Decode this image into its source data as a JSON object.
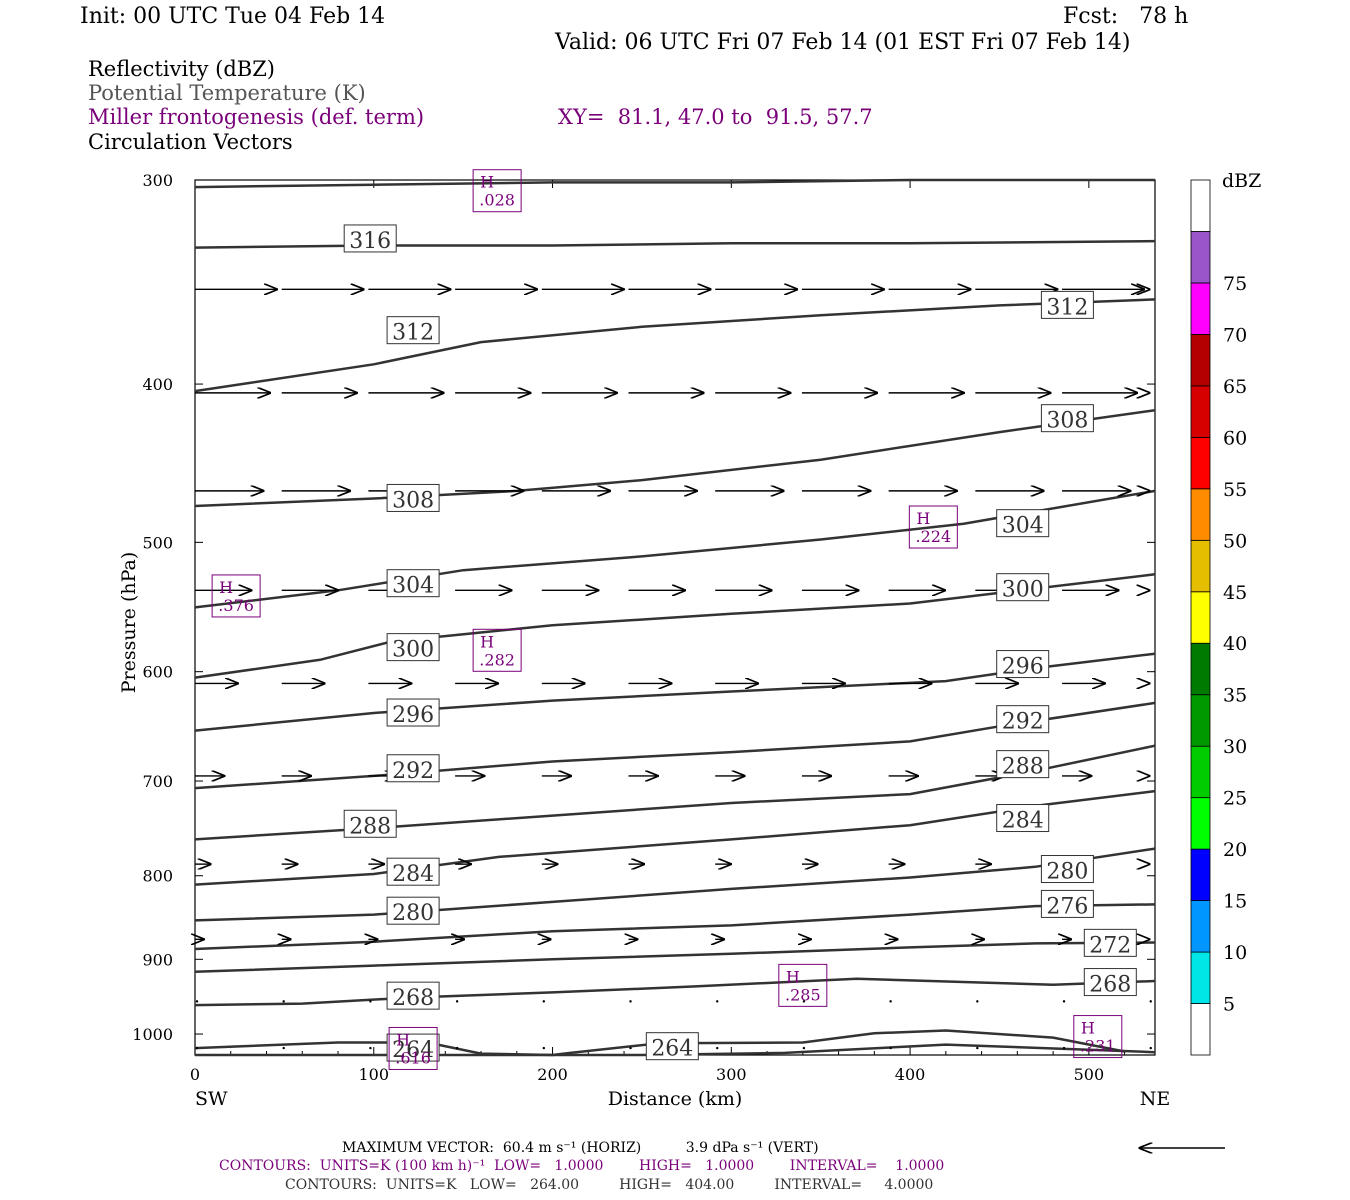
{
  "header": {
    "init": "Init: 00 UTC Tue 04 Feb 14",
    "fcst": "Fcst:   78 h",
    "valid": "Valid: 06 UTC Fri 07 Feb 14 (01 EST Fri 07 Feb 14)"
  },
  "legend": [
    {
      "text": "Reflectivity (dBZ)",
      "color": "#000000"
    },
    {
      "text": "Potential Temperature (K)",
      "color": "#555555"
    },
    {
      "text": "Miller frontogenesis (def. term)",
      "color": "#7a007a"
    },
    {
      "text": "Circulation Vectors",
      "color": "#000000"
    }
  ],
  "xy_label": "XY=  81.1, 47.0 to  91.5, 57.7",
  "colorbar": {
    "unit": "dBZ",
    "levels": [
      "5",
      "10",
      "15",
      "20",
      "25",
      "30",
      "35",
      "40",
      "45",
      "50",
      "55",
      "60",
      "65",
      "70",
      "75"
    ],
    "colors": [
      "#ffffff",
      "#00e5e5",
      "#0096ff",
      "#0000ff",
      "#00ff00",
      "#00cc00",
      "#009900",
      "#007a00",
      "#ffff00",
      "#e6be00",
      "#ff8c00",
      "#ff0000",
      "#d70000",
      "#b40000",
      "#ff00ff",
      "#9955c9",
      "#ffffff"
    ]
  },
  "footer": {
    "line1": "MAXIMUM VECTOR:  60.4 m s⁻¹ (HORIZ)          3.9 dPa s⁻¹ (VERT)",
    "line2": "CONTOURS:  UNITS=K (100 km h)⁻¹  LOW=   1.0000        HIGH=   1.0000        INTERVAL=    1.0000",
    "line3": "CONTOURS:  UNITS=K   LOW=   264.00         HIGH=   404.00         INTERVAL=     4.0000"
  },
  "chart_data": {
    "type": "line",
    "title": "",
    "xlabel": "Distance (km)",
    "ylabel": "Pressure (hPa)",
    "xlim": [
      0,
      537
    ],
    "ylim": [
      1030,
      300
    ],
    "y_scale": "log",
    "x_ticks": [
      "0",
      "100",
      "200",
      "300",
      "400",
      "500"
    ],
    "y_ticks": [
      "300",
      "400",
      "500",
      "600",
      "700",
      "800",
      "900",
      "1000"
    ],
    "x_end_labels": {
      "left": "SW",
      "right": "NE"
    },
    "theta_contours": [
      {
        "name": "316",
        "points": [
          [
            0,
            303
          ],
          [
            100,
            302
          ],
          [
            200,
            301
          ],
          [
            300,
            301
          ],
          [
            400,
            300
          ],
          [
            537,
            300
          ]
        ],
        "labels": [
          [
            98,
            326
          ]
        ]
      },
      {
        "name": "312",
        "points": [
          [
            0,
            330
          ],
          [
            100,
            329
          ],
          [
            200,
            329
          ],
          [
            300,
            328
          ],
          [
            400,
            328
          ],
          [
            537,
            327
          ]
        ],
        "labels": [
          [
            122,
            371
          ],
          [
            488,
            358
          ]
        ]
      },
      {
        "name": "308",
        "points": [
          [
            0,
            404
          ],
          [
            100,
            389
          ],
          [
            160,
            377
          ],
          [
            250,
            369
          ],
          [
            350,
            363
          ],
          [
            450,
            358
          ],
          [
            537,
            355
          ]
        ],
        "labels": [
          [
            488,
            420
          ]
        ]
      },
      {
        "name": "308b",
        "points": [
          [
            0,
            475
          ],
          [
            100,
            470
          ],
          [
            180,
            465
          ],
          [
            250,
            458
          ],
          [
            350,
            445
          ],
          [
            450,
            428
          ],
          [
            537,
            415
          ]
        ],
        "labels": [
          [
            122,
            470
          ]
        ]
      },
      {
        "name": "304",
        "points": [
          [
            0,
            548
          ],
          [
            80,
            535
          ],
          [
            150,
            520
          ],
          [
            250,
            510
          ],
          [
            350,
            498
          ],
          [
            430,
            487
          ],
          [
            537,
            465
          ]
        ],
        "labels": [
          [
            122,
            530
          ],
          [
            463,
            487
          ]
        ]
      },
      {
        "name": "300",
        "points": [
          [
            0,
            605
          ],
          [
            70,
            590
          ],
          [
            110,
            575
          ],
          [
            200,
            562
          ],
          [
            300,
            553
          ],
          [
            400,
            545
          ],
          [
            537,
            523
          ]
        ],
        "labels": [
          [
            122,
            580
          ],
          [
            463,
            533
          ]
        ]
      },
      {
        "name": "296",
        "points": [
          [
            0,
            652
          ],
          [
            100,
            636
          ],
          [
            200,
            625
          ],
          [
            300,
            617
          ],
          [
            420,
            608
          ],
          [
            470,
            597
          ],
          [
            537,
            585
          ]
        ],
        "labels": [
          [
            122,
            636
          ],
          [
            463,
            594
          ]
        ]
      },
      {
        "name": "292",
        "points": [
          [
            0,
            707
          ],
          [
            100,
            695
          ],
          [
            200,
            681
          ],
          [
            300,
            672
          ],
          [
            400,
            662
          ],
          [
            450,
            648
          ],
          [
            537,
            627
          ]
        ],
        "labels": [
          [
            122,
            688
          ],
          [
            463,
            642
          ]
        ]
      },
      {
        "name": "288",
        "points": [
          [
            0,
            760
          ],
          [
            100,
            748
          ],
          [
            200,
            735
          ],
          [
            300,
            722
          ],
          [
            400,
            713
          ],
          [
            470,
            690
          ],
          [
            537,
            666
          ]
        ],
        "labels": [
          [
            98,
            744
          ],
          [
            463,
            684
          ]
        ]
      },
      {
        "name": "284",
        "points": [
          [
            0,
            810
          ],
          [
            100,
            798
          ],
          [
            170,
            779
          ],
          [
            300,
            760
          ],
          [
            400,
            745
          ],
          [
            470,
            725
          ],
          [
            537,
            710
          ]
        ],
        "labels": [
          [
            122,
            796
          ],
          [
            463,
            738
          ]
        ]
      },
      {
        "name": "280",
        "points": [
          [
            0,
            852
          ],
          [
            100,
            845
          ],
          [
            200,
            830
          ],
          [
            300,
            815
          ],
          [
            400,
            802
          ],
          [
            470,
            790
          ],
          [
            537,
            770
          ]
        ],
        "labels": [
          [
            122,
            841
          ],
          [
            488,
            793
          ]
        ]
      },
      {
        "name": "276",
        "points": [
          [
            0,
            887
          ],
          [
            100,
            878
          ],
          [
            200,
            865
          ],
          [
            300,
            858
          ],
          [
            400,
            845
          ],
          [
            470,
            835
          ],
          [
            537,
            833
          ]
        ],
        "labels": [
          [
            488,
            833
          ]
        ]
      },
      {
        "name": "272",
        "points": [
          [
            0,
            916
          ],
          [
            100,
            908
          ],
          [
            200,
            900
          ],
          [
            300,
            893
          ],
          [
            400,
            885
          ],
          [
            470,
            880
          ],
          [
            537,
            879
          ]
        ],
        "labels": [
          [
            512,
            880
          ]
        ]
      },
      {
        "name": "268",
        "points": [
          [
            0,
            960
          ],
          [
            60,
            958
          ],
          [
            120,
            950
          ],
          [
            200,
            943
          ],
          [
            280,
            935
          ],
          [
            370,
            925
          ],
          [
            480,
            933
          ],
          [
            537,
            928
          ]
        ],
        "labels": [
          [
            122,
            948
          ],
          [
            512,
            930
          ]
        ]
      },
      {
        "name": "264",
        "points": [
          [
            0,
            1020
          ],
          [
            80,
            1012
          ],
          [
            130,
            1012
          ],
          [
            160,
            1028
          ],
          [
            200,
            1030
          ],
          [
            210,
            1027
          ],
          [
            260,
            1013
          ],
          [
            340,
            1012
          ],
          [
            380,
            999
          ],
          [
            420,
            995
          ],
          [
            480,
            1005
          ],
          [
            520,
            1025
          ]
        ],
        "labels": [
          [
            122,
            1020
          ],
          [
            267,
            1018
          ]
        ]
      },
      {
        "name": "264b",
        "points": [
          [
            0,
            1030
          ],
          [
            150,
            1030
          ],
          [
            250,
            1030
          ],
          [
            330,
            1027
          ],
          [
            420,
            1015
          ],
          [
            537,
            1026
          ]
        ],
        "labels": []
      }
    ],
    "frontogenesis_maxima": [
      {
        "label": "H",
        "value": ".028",
        "at": [
          169,
          305
        ]
      },
      {
        "label": "H",
        "value": ".224",
        "at": [
          413,
          490
        ]
      },
      {
        "label": "H",
        "value": ".376",
        "at": [
          23,
          540
        ]
      },
      {
        "label": "H",
        "value": ".282",
        "at": [
          169,
          583
        ]
      },
      {
        "label": "H",
        "value": ".285",
        "at": [
          340,
          935
        ]
      },
      {
        "label": "H",
        "value": ".231",
        "at": [
          505,
          1005
        ]
      },
      {
        "label": "H",
        "value": ".616",
        "at": [
          122,
          1022
        ]
      }
    ],
    "vectors": {
      "x_positions": [
        0,
        48.5,
        97,
        145.5,
        194,
        242.5,
        291,
        339.5,
        388,
        436.5,
        485,
        533.5
      ],
      "rows": [
        {
          "p": 350,
          "len": 48
        },
        {
          "p": 405,
          "len": 44
        },
        {
          "p": 465,
          "len": 40
        },
        {
          "p": 535,
          "len": 33
        },
        {
          "p": 610,
          "len": 25
        },
        {
          "p": 695,
          "len": 17
        },
        {
          "p": 787,
          "len": 9
        },
        {
          "p": 875,
          "len": 5
        },
        {
          "p": 955,
          "len": 1
        },
        {
          "p": 1020,
          "len": 0
        }
      ]
    },
    "reference_vector": {
      "direction": "left"
    }
  }
}
